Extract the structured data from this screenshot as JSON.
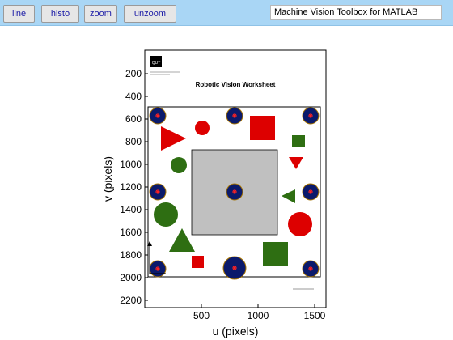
{
  "toolbar": {
    "buttons": [
      {
        "label": "line"
      },
      {
        "label": "histo"
      },
      {
        "label": "zoom"
      },
      {
        "label": "unzoom"
      }
    ],
    "title": "Machine Vision Toolbox for MATLAB"
  },
  "chart_data": {
    "type": "image",
    "xlabel": "u (pixels)",
    "ylabel": "v (pixels)",
    "xticks": [
      "500",
      "1000",
      "1500"
    ],
    "yticks": [
      "200",
      "400",
      "600",
      "800",
      "1000",
      "1200",
      "1400",
      "1600",
      "1800",
      "2000",
      "2200"
    ],
    "xlim": [
      0,
      1620
    ],
    "ylim": [
      2300,
      0
    ],
    "image": {
      "logo_text": "QUT",
      "heading": "Robotic Vision Worksheet"
    },
    "colors": {
      "red": "#dd0000",
      "green": "#2e6e12",
      "blue": "#0b1a6b",
      "gray": "#c0c0c0"
    }
  }
}
